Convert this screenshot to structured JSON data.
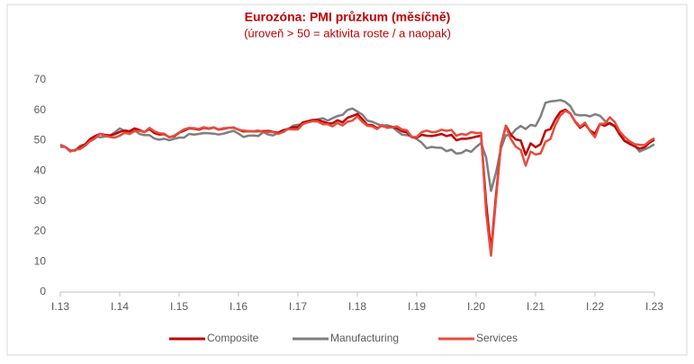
{
  "chart_data": {
    "type": "line",
    "title": "Eurozóna: PMI průzkum (měsíčně)",
    "subtitle": "(úroveň > 50 = aktivita roste / a naopak)",
    "categories": [
      "I.13",
      null,
      null,
      null,
      null,
      null,
      null,
      null,
      null,
      null,
      null,
      null,
      "I.14",
      null,
      null,
      null,
      null,
      null,
      null,
      null,
      null,
      null,
      null,
      null,
      "I.15",
      null,
      null,
      null,
      null,
      null,
      null,
      null,
      null,
      null,
      null,
      null,
      "I.16",
      null,
      null,
      null,
      null,
      null,
      null,
      null,
      null,
      null,
      null,
      null,
      "I.17",
      null,
      null,
      null,
      null,
      null,
      null,
      null,
      null,
      null,
      null,
      null,
      "I.18",
      null,
      null,
      null,
      null,
      null,
      null,
      null,
      null,
      null,
      null,
      null,
      "I.19",
      null,
      null,
      null,
      null,
      null,
      null,
      null,
      null,
      null,
      null,
      null,
      "I.20",
      null,
      null,
      null,
      null,
      null,
      null,
      null,
      null,
      null,
      null,
      null,
      "I.21",
      null,
      null,
      null,
      null,
      null,
      null,
      null,
      null,
      null,
      null,
      null,
      "I.22",
      null,
      null,
      null,
      null,
      null,
      null,
      null,
      null,
      null,
      null,
      null,
      "I.23"
    ],
    "series": [
      {
        "name": "Composite",
        "color": "#c00000",
        "values": [
          48.6,
          47.9,
          46.5,
          46.9,
          47.7,
          48.7,
          50.5,
          51.5,
          52.2,
          51.9,
          51.7,
          52.1,
          52.9,
          53.3,
          53.1,
          54.0,
          53.5,
          52.8,
          53.8,
          52.5,
          52.0,
          52.1,
          51.1,
          51.4,
          52.6,
          53.3,
          54.0,
          53.9,
          53.6,
          54.2,
          53.9,
          54.3,
          53.6,
          53.9,
          54.2,
          54.3,
          53.6,
          53.0,
          53.1,
          53.0,
          53.1,
          53.1,
          53.2,
          52.9,
          52.6,
          53.3,
          53.9,
          54.4,
          54.4,
          56.0,
          56.4,
          56.8,
          56.8,
          56.3,
          55.7,
          55.7,
          56.7,
          56.0,
          57.5,
          58.1,
          58.8,
          57.1,
          55.2,
          55.1,
          54.1,
          54.9,
          54.3,
          54.5,
          54.1,
          53.1,
          52.7,
          51.1,
          51.0,
          51.9,
          51.6,
          51.5,
          51.8,
          52.2,
          51.5,
          51.9,
          50.1,
          50.6,
          50.6,
          50.9,
          51.3,
          51.6,
          29.7,
          13.6,
          31.9,
          48.5,
          54.9,
          51.9,
          50.4,
          50.0,
          45.3,
          49.1,
          47.8,
          48.8,
          53.2,
          53.8,
          57.1,
          59.5,
          60.2,
          59.0,
          56.2,
          54.2,
          55.4,
          53.3,
          52.3,
          55.5,
          54.9,
          55.8,
          54.8,
          52.0,
          49.9,
          48.9,
          48.1,
          47.3,
          47.8,
          49.3,
          50.3
        ]
      },
      {
        "name": "Manufacturing",
        "color": "#7f7f7f",
        "values": [
          47.9,
          47.9,
          46.8,
          46.7,
          48.3,
          48.8,
          50.3,
          51.4,
          51.1,
          51.3,
          51.6,
          52.7,
          54.0,
          53.2,
          53.0,
          53.4,
          52.2,
          51.8,
          51.8,
          50.7,
          50.3,
          50.6,
          50.1,
          50.6,
          51.0,
          51.0,
          52.2,
          52.0,
          52.2,
          52.5,
          52.4,
          52.3,
          52.0,
          52.3,
          52.8,
          53.2,
          52.3,
          51.2,
          51.6,
          51.7,
          51.5,
          52.8,
          52.0,
          51.7,
          52.6,
          53.5,
          53.7,
          54.9,
          55.2,
          55.4,
          56.2,
          56.7,
          57.0,
          57.4,
          56.6,
          57.4,
          58.1,
          58.5,
          60.1,
          60.6,
          59.6,
          58.6,
          56.6,
          56.2,
          55.5,
          54.9,
          55.1,
          54.6,
          53.2,
          52.0,
          51.8,
          51.4,
          50.5,
          49.3,
          47.5,
          47.9,
          47.7,
          47.6,
          46.5,
          47.0,
          45.7,
          45.9,
          46.9,
          46.3,
          47.9,
          49.2,
          44.5,
          33.4,
          39.4,
          47.4,
          51.8,
          51.7,
          53.7,
          54.8,
          53.8,
          55.2,
          54.8,
          57.9,
          62.5,
          62.9,
          63.1,
          63.4,
          62.8,
          61.4,
          58.6,
          58.3,
          58.4,
          58.0,
          58.7,
          58.2,
          56.5,
          55.5,
          54.6,
          52.1,
          49.8,
          49.6,
          48.4,
          46.4,
          47.1,
          47.8,
          48.8
        ]
      },
      {
        "name": "Services",
        "color": "#e84c3d",
        "values": [
          48.6,
          47.9,
          46.4,
          47.0,
          47.2,
          48.3,
          49.8,
          50.7,
          52.2,
          51.6,
          51.2,
          51.0,
          51.6,
          52.6,
          52.2,
          53.1,
          53.2,
          52.8,
          54.2,
          53.1,
          52.4,
          52.3,
          51.1,
          51.6,
          52.7,
          53.7,
          54.2,
          54.1,
          53.8,
          54.4,
          54.0,
          54.4,
          53.7,
          54.1,
          54.2,
          54.2,
          53.6,
          53.3,
          53.1,
          53.1,
          53.3,
          52.8,
          52.9,
          52.8,
          52.2,
          52.8,
          53.8,
          53.7,
          53.7,
          55.5,
          56.0,
          56.4,
          56.3,
          55.4,
          55.4,
          54.7,
          55.8,
          55.0,
          56.2,
          56.6,
          58.0,
          56.2,
          54.9,
          54.7,
          53.8,
          55.2,
          54.2,
          54.4,
          54.7,
          53.7,
          53.4,
          51.2,
          51.2,
          52.8,
          53.3,
          52.8,
          52.9,
          53.6,
          53.2,
          53.5,
          51.6,
          52.2,
          51.9,
          52.8,
          52.5,
          52.6,
          26.4,
          12.0,
          30.5,
          48.3,
          54.7,
          50.5,
          48.0,
          46.9,
          41.7,
          46.4,
          45.4,
          45.7,
          49.6,
          50.5,
          55.2,
          58.3,
          59.8,
          59.0,
          56.4,
          54.6,
          55.9,
          53.1,
          51.1,
          55.5,
          55.6,
          57.7,
          56.1,
          53.0,
          51.2,
          49.8,
          48.8,
          48.6,
          48.5,
          49.8,
          50.8
        ]
      }
    ],
    "ylim": [
      0,
      70
    ],
    "yticks": [
      0,
      10,
      20,
      30,
      40,
      50,
      60,
      70
    ],
    "grid": false,
    "legend": "bottom"
  }
}
